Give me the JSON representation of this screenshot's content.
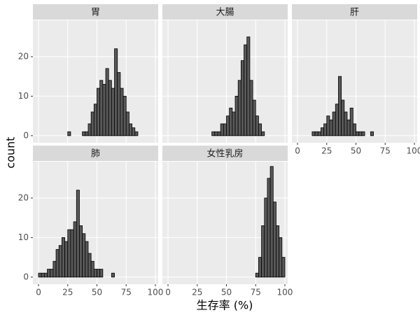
{
  "chart_data": {
    "type": "histogram",
    "xlabel": "生存率 (%)",
    "ylabel": "count",
    "bins": [
      0,
      2.5,
      5,
      7.5,
      10,
      12.5,
      15,
      17.5,
      20,
      22.5,
      25,
      27.5,
      30,
      32.5,
      35,
      37.5,
      40,
      42.5,
      45,
      47.5,
      50,
      52.5,
      55,
      57.5,
      60,
      62.5,
      65,
      67.5,
      70,
      72.5,
      75,
      77.5,
      80,
      82.5,
      85,
      87.5,
      90,
      92.5,
      95,
      97.5,
      100
    ],
    "xlim": [
      -4.8,
      102.4
    ],
    "xticks": [
      0,
      25,
      50,
      75,
      100
    ],
    "ylim": [
      -1.8,
      29.2
    ],
    "yticks": [
      0,
      10,
      20
    ],
    "grid": true,
    "color": "#595959",
    "panels": [
      {
        "title": "胃",
        "values": [
          0,
          0,
          0,
          0,
          0,
          0,
          0,
          0,
          0,
          0,
          1,
          0,
          0,
          0,
          0,
          1,
          1,
          3,
          6,
          8,
          12,
          14,
          13,
          17,
          14,
          12,
          22,
          16,
          12,
          10,
          6,
          3,
          2,
          1,
          0,
          0,
          0,
          0,
          0,
          0
        ]
      },
      {
        "title": "大腸",
        "values": [
          0,
          0,
          0,
          0,
          0,
          0,
          0,
          0,
          0,
          0,
          0,
          0,
          0,
          0,
          0,
          1,
          1,
          1,
          3,
          3,
          5,
          7,
          6,
          10,
          14,
          19,
          23,
          25,
          14,
          9,
          5,
          3,
          1,
          0,
          0,
          0,
          0,
          0,
          0,
          0
        ]
      },
      {
        "title": "肝",
        "values": [
          0,
          0,
          0,
          0,
          0,
          1,
          1,
          1,
          2,
          3,
          5,
          4,
          6,
          8,
          15,
          9,
          6,
          4,
          7,
          3,
          1,
          1,
          1,
          0,
          0,
          1,
          0,
          0,
          0,
          0,
          0,
          0,
          0,
          0,
          0,
          0,
          0,
          0,
          0,
          0
        ]
      },
      {
        "title": "肺",
        "values": [
          1,
          1,
          1,
          2,
          2,
          4,
          7,
          8,
          10,
          9,
          12,
          12,
          14,
          22,
          13,
          11,
          9,
          6,
          4,
          2,
          2,
          2,
          0,
          0,
          0,
          1,
          0,
          0,
          0,
          0,
          0,
          0,
          0,
          0,
          0,
          0,
          0,
          0,
          0,
          0
        ]
      },
      {
        "title": "女性乳房",
        "values": [
          0,
          0,
          0,
          0,
          0,
          0,
          0,
          0,
          0,
          0,
          0,
          0,
          0,
          0,
          0,
          0,
          0,
          0,
          0,
          0,
          0,
          0,
          0,
          0,
          0,
          0,
          0,
          0,
          0,
          0,
          1,
          5,
          13,
          20,
          25,
          28,
          19,
          13,
          10,
          5
        ]
      }
    ]
  }
}
